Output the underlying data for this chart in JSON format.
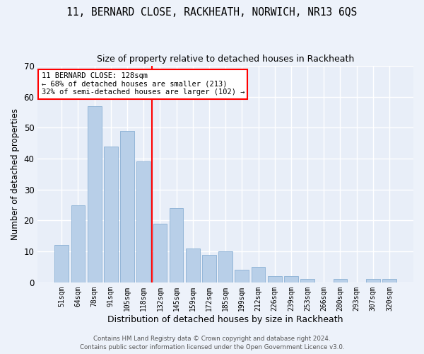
{
  "title": "11, BERNARD CLOSE, RACKHEATH, NORWICH, NR13 6QS",
  "subtitle": "Size of property relative to detached houses in Rackheath",
  "xlabel": "Distribution of detached houses by size in Rackheath",
  "ylabel": "Number of detached properties",
  "categories": [
    "51sqm",
    "64sqm",
    "78sqm",
    "91sqm",
    "105sqm",
    "118sqm",
    "132sqm",
    "145sqm",
    "159sqm",
    "172sqm",
    "185sqm",
    "199sqm",
    "212sqm",
    "226sqm",
    "239sqm",
    "253sqm",
    "266sqm",
    "280sqm",
    "293sqm",
    "307sqm",
    "320sqm"
  ],
  "values": [
    12,
    25,
    57,
    44,
    49,
    39,
    19,
    24,
    11,
    9,
    10,
    4,
    5,
    2,
    2,
    1,
    0,
    1,
    0,
    1,
    1
  ],
  "bar_color": "#b8cfe8",
  "bar_edge_color": "#8ab0d4",
  "annotation_line1": "11 BERNARD CLOSE: 128sqm",
  "annotation_line2": "← 68% of detached houses are smaller (213)",
  "annotation_line3": "32% of semi-detached houses are larger (102) →",
  "ylim": [
    0,
    70
  ],
  "yticks": [
    0,
    10,
    20,
    30,
    40,
    50,
    60,
    70
  ],
  "background_color": "#e8eef8",
  "grid_color": "#ffffff",
  "footer_line1": "Contains HM Land Registry data © Crown copyright and database right 2024.",
  "footer_line2": "Contains public sector information licensed under the Open Government Licence v3.0."
}
